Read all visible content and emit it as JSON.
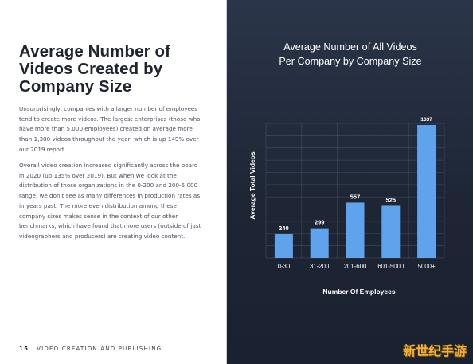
{
  "page": {
    "title": "Average Number of Videos Created by Company Size",
    "paragraphs": [
      "Unsurprisingly, companies with a larger number of employees tend to create more videos. The largest enterprises (those who have more than 5,000 employees) created on average more than 1,300 videos throughout the year, which is up 149% over our 2019 report.",
      "Overall video creation increased significantly across the board in 2020 (up 135% over 2019). But when we look at the distribution of those organizations in the 0-200 and 200-5,000 range, we don't see as many differences in production rates as in years past. The more even distribution among these company sizes makes sense in the context of our other benchmarks, which have found that more users (outside of just videographers and producers) are creating video content."
    ],
    "footer": {
      "page_number": "15",
      "section": "VIDEO CREATION AND PUBLISHING"
    },
    "watermark": "新世纪手游"
  },
  "colors": {
    "bar": "#5fa3ec",
    "panel": "#222b3c",
    "text_dark": "#1f2430"
  },
  "chart_data": {
    "type": "bar",
    "title_lines": [
      "Average Number of All Videos",
      "Per Company by Company Size"
    ],
    "categories": [
      "0-30",
      "31-200",
      "201-600",
      "601-5000",
      "5000+"
    ],
    "values": [
      240,
      299,
      557,
      525,
      1337
    ],
    "data_labels": [
      "240",
      "299",
      "557",
      "525",
      "1337"
    ],
    "xlabel": "Number Of Employees",
    "ylabel": "Average Total Videos",
    "ylim": [
      0,
      1337
    ],
    "grid": true
  }
}
